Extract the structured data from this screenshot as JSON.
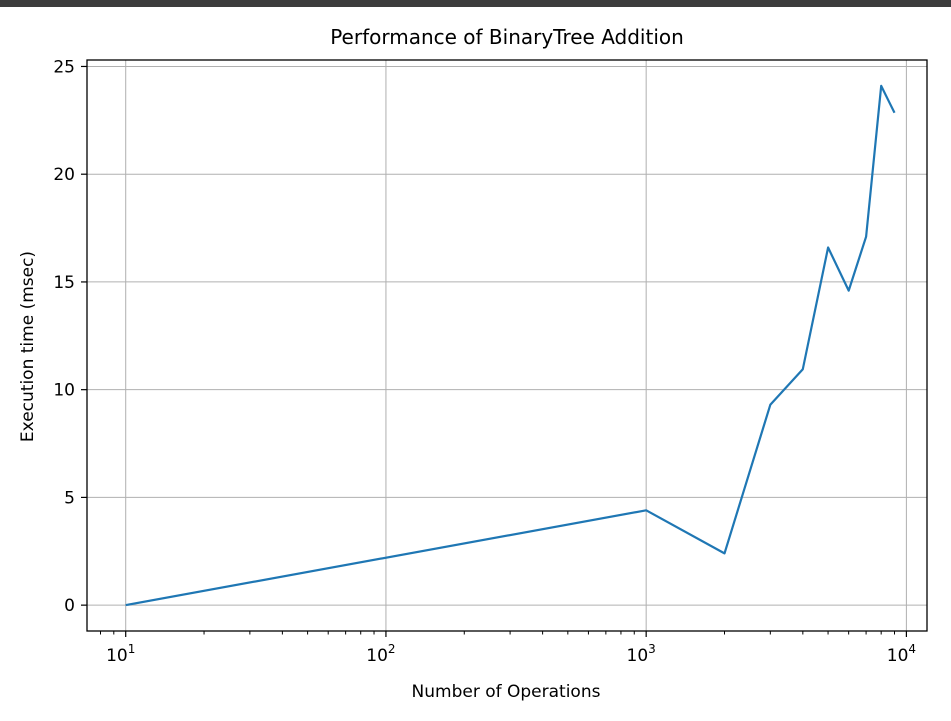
{
  "chart_data": {
    "type": "line",
    "title": "Performance of BinaryTree Addition",
    "xlabel": "Number of Operations",
    "ylabel": "Execution time (msec)",
    "xscale": "log",
    "xlim": [
      7.1,
      12000
    ],
    "ylim": [
      -1.2,
      25.3
    ],
    "grid": true,
    "xticks": [
      {
        "value": 10,
        "base": "10",
        "exp": "1"
      },
      {
        "value": 100,
        "base": "10",
        "exp": "2"
      },
      {
        "value": 1000,
        "base": "10",
        "exp": "3"
      },
      {
        "value": 10000,
        "base": "10",
        "exp": "4"
      }
    ],
    "yticks": [
      0,
      5,
      10,
      15,
      20,
      25
    ],
    "series": [
      {
        "color": "#1f77b4",
        "x": [
          10,
          1000,
          2000,
          3000,
          4000,
          5000,
          6000,
          7000,
          8000,
          9000
        ],
        "y": [
          0.0,
          4.4,
          2.4,
          9.3,
          10.95,
          16.6,
          14.6,
          17.1,
          24.1,
          22.85
        ]
      }
    ]
  }
}
